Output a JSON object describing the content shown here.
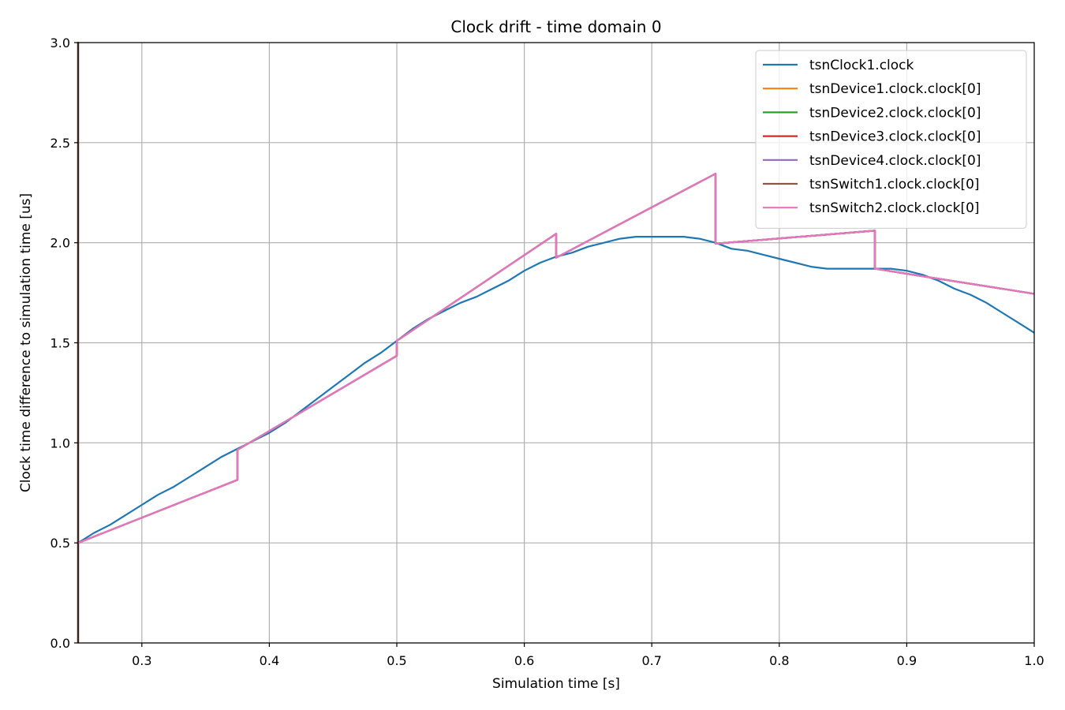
{
  "chart_data": {
    "type": "line",
    "title": "Clock drift - time domain 0",
    "xlabel": "Simulation time [s]",
    "ylabel": "Clock time difference to simulation time [us]",
    "xlim": [
      0.25,
      1.0
    ],
    "ylim": [
      0.0,
      3.0
    ],
    "xticks": [
      0.3,
      0.4,
      0.5,
      0.6,
      0.7,
      0.8,
      0.9,
      1.0
    ],
    "xtick_labels": [
      "0.3",
      "0.4",
      "0.5",
      "0.6",
      "0.7",
      "0.8",
      "0.9",
      "1.0"
    ],
    "yticks": [
      0.0,
      0.5,
      1.0,
      1.5,
      2.0,
      2.5,
      3.0
    ],
    "ytick_labels": [
      "0.0",
      "0.5",
      "1.0",
      "1.5",
      "2.0",
      "2.5",
      "3.0"
    ],
    "grid": true,
    "legend_position": "top-right",
    "series": [
      {
        "name": "tsnClock1.clock",
        "color": "#1f77b4",
        "x": [
          0.25,
          0.2625,
          0.275,
          0.2875,
          0.3,
          0.3125,
          0.325,
          0.3375,
          0.35,
          0.3625,
          0.375,
          0.3875,
          0.4,
          0.4125,
          0.425,
          0.4375,
          0.45,
          0.4625,
          0.475,
          0.4875,
          0.5,
          0.5125,
          0.525,
          0.5375,
          0.55,
          0.5625,
          0.575,
          0.5875,
          0.6,
          0.6125,
          0.625,
          0.6375,
          0.65,
          0.6625,
          0.675,
          0.6875,
          0.7,
          0.7125,
          0.725,
          0.7375,
          0.75,
          0.7625,
          0.775,
          0.7875,
          0.8,
          0.8125,
          0.825,
          0.8375,
          0.85,
          0.8625,
          0.875,
          0.8875,
          0.9,
          0.9125,
          0.925,
          0.9375,
          0.95,
          0.9625,
          0.975,
          0.9875,
          1.0
        ],
        "y": [
          0.5,
          0.55,
          0.59,
          0.64,
          0.69,
          0.74,
          0.78,
          0.83,
          0.88,
          0.93,
          0.97,
          1.01,
          1.05,
          1.1,
          1.16,
          1.22,
          1.28,
          1.34,
          1.4,
          1.45,
          1.51,
          1.57,
          1.62,
          1.66,
          1.7,
          1.73,
          1.77,
          1.81,
          1.86,
          1.9,
          1.93,
          1.95,
          1.98,
          2.0,
          2.02,
          2.03,
          2.03,
          2.03,
          2.03,
          2.02,
          2.0,
          1.97,
          1.96,
          1.94,
          1.92,
          1.9,
          1.88,
          1.87,
          1.87,
          1.87,
          1.87,
          1.87,
          1.86,
          1.84,
          1.81,
          1.77,
          1.74,
          1.7,
          1.65,
          1.6,
          1.55
        ]
      },
      {
        "name": "tsnDevice1.clock.clock[0]",
        "color": "#ff7f0e",
        "x": [
          0.25,
          0.25,
          0.25,
          0.375,
          0.375,
          0.5,
          0.5,
          0.625,
          0.625,
          0.75,
          0.75,
          0.875,
          0.875,
          1.0
        ],
        "y": [
          0.0,
          3.0,
          0.5,
          0.815,
          0.965,
          1.435,
          1.51,
          2.045,
          1.925,
          2.345,
          1.995,
          2.06,
          1.87,
          1.745
        ]
      },
      {
        "name": "tsnDevice2.clock.clock[0]",
        "color": "#2ca02c",
        "x": [
          0.25,
          0.25,
          0.25,
          0.375,
          0.375,
          0.5,
          0.5,
          0.625,
          0.625,
          0.75,
          0.75,
          0.875,
          0.875,
          1.0
        ],
        "y": [
          0.0,
          3.0,
          0.5,
          0.815,
          0.965,
          1.435,
          1.51,
          2.045,
          1.925,
          2.345,
          1.995,
          2.06,
          1.87,
          1.745
        ]
      },
      {
        "name": "tsnDevice3.clock.clock[0]",
        "color": "#d62728",
        "x": [
          0.25,
          0.25,
          0.25,
          0.375,
          0.375,
          0.5,
          0.5,
          0.625,
          0.625,
          0.75,
          0.75,
          0.875,
          0.875,
          1.0
        ],
        "y": [
          0.0,
          3.0,
          0.5,
          0.815,
          0.965,
          1.435,
          1.51,
          2.045,
          1.925,
          2.345,
          1.995,
          2.06,
          1.87,
          1.745
        ]
      },
      {
        "name": "tsnDevice4.clock.clock[0]",
        "color": "#9467bd",
        "x": [
          0.25,
          0.25,
          0.25,
          0.375,
          0.375,
          0.5,
          0.5,
          0.625,
          0.625,
          0.75,
          0.75,
          0.875,
          0.875,
          1.0
        ],
        "y": [
          0.0,
          3.0,
          0.5,
          0.815,
          0.965,
          1.435,
          1.51,
          2.045,
          1.925,
          2.345,
          1.995,
          2.06,
          1.87,
          1.745
        ]
      },
      {
        "name": "tsnSwitch1.clock.clock[0]",
        "color": "#8c564b",
        "x": [
          0.25,
          0.25,
          0.25,
          0.375,
          0.375,
          0.5,
          0.5,
          0.625,
          0.625,
          0.75,
          0.75,
          0.875,
          0.875,
          1.0
        ],
        "y": [
          0.0,
          3.0,
          0.5,
          0.815,
          0.965,
          1.435,
          1.51,
          2.045,
          1.925,
          2.345,
          1.995,
          2.06,
          1.87,
          1.745
        ]
      },
      {
        "name": "tsnSwitch2.clock.clock[0]",
        "color": "#e377c2",
        "x": [
          0.25,
          0.375,
          0.375,
          0.5,
          0.5,
          0.625,
          0.625,
          0.75,
          0.75,
          0.875,
          0.875,
          1.0
        ],
        "y": [
          0.5,
          0.815,
          0.965,
          1.435,
          1.51,
          2.045,
          1.925,
          2.345,
          1.995,
          2.06,
          1.87,
          1.745
        ]
      }
    ]
  }
}
